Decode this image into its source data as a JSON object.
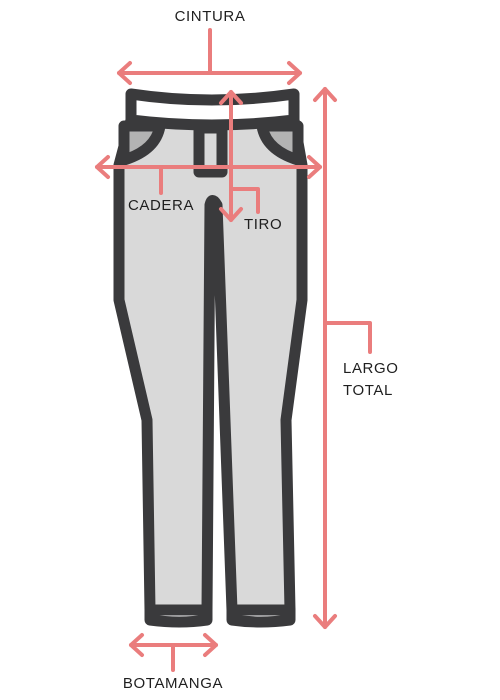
{
  "labels": {
    "cintura": "CINTURA",
    "cadera": "CADERA",
    "tiro": "TIRO",
    "largo_total_line1": "LARGO",
    "largo_total_line2": "TOTAL",
    "botamanga": "BOTAMANGA"
  },
  "colors": {
    "measure_line": "#ea7d7d",
    "outline": "#3a3a3c",
    "fabric": "#d9d9d9",
    "pocket": "#b3b3b3",
    "waistband": "#ffffff",
    "text": "#1f1f1f"
  },
  "icons": {
    "garment": "jeans-icon"
  }
}
